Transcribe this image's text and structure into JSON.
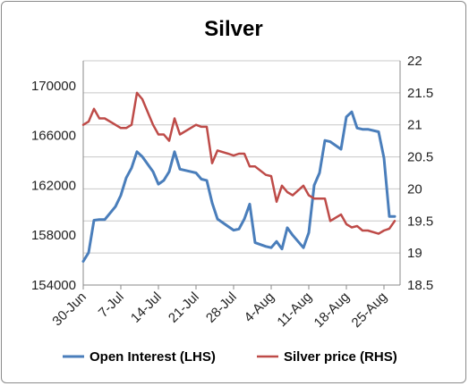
{
  "chart_data": {
    "type": "line",
    "title": "Silver",
    "x_tick_labels": [
      "30-Jun",
      "7-Jul",
      "14-Jul",
      "21-Jul",
      "28-Jul",
      "4-Aug",
      "11-Aug",
      "18-Aug",
      "25-Aug"
    ],
    "y_left": {
      "ylim": [
        154000,
        172000
      ],
      "ticks": [
        154000,
        158000,
        162000,
        166000,
        170000
      ]
    },
    "y_right": {
      "ylim": [
        18.5,
        22
      ],
      "ticks": [
        18.5,
        19,
        19.5,
        20,
        20.5,
        21,
        21.5,
        22
      ]
    },
    "grid": true,
    "legend": "bottom",
    "series": [
      {
        "name": "Open Interest (LHS)",
        "axis": "left",
        "color": "#4a7ebb",
        "x": [
          "30-Jun",
          "1-Jul",
          "2-Jul",
          "3-Jul",
          "4-Jul",
          "6-Jul",
          "7-Jul",
          "8-Jul",
          "9-Jul",
          "10-Jul",
          "11-Jul",
          "13-Jul",
          "14-Jul",
          "15-Jul",
          "16-Jul",
          "17-Jul",
          "18-Jul",
          "20-Jul",
          "21-Jul",
          "22-Jul",
          "23-Jul",
          "24-Jul",
          "25-Jul",
          "27-Jul",
          "28-Jul",
          "29-Jul",
          "30-Jul",
          "31-Jul",
          "1-Aug",
          "3-Aug",
          "4-Aug",
          "5-Aug",
          "6-Aug",
          "7-Aug",
          "8-Aug",
          "10-Aug",
          "11-Aug",
          "12-Aug",
          "13-Aug",
          "14-Aug",
          "15-Aug",
          "17-Aug",
          "18-Aug",
          "19-Aug",
          "20-Aug",
          "21-Aug",
          "22-Aug",
          "24-Aug",
          "25-Aug",
          "26-Aug",
          "27-Aug"
        ],
        "values": [
          155900,
          156600,
          159200,
          159250,
          159250,
          160300,
          161200,
          162600,
          163400,
          164700,
          164300,
          163100,
          162100,
          162400,
          163100,
          164700,
          163300,
          163100,
          163000,
          162500,
          162400,
          160600,
          159300,
          158700,
          158400,
          158500,
          159300,
          160500,
          157400,
          157100,
          157000,
          157500,
          156900,
          158600,
          158000,
          157000,
          158200,
          162000,
          163000,
          165600,
          165500,
          164900,
          167500,
          167900,
          166600,
          166500,
          166500,
          166300,
          164200,
          159500,
          159500
        ]
      },
      {
        "name": "Silver price (RHS)",
        "axis": "right",
        "color": "#be4b48",
        "x": [
          "30-Jun",
          "1-Jul",
          "2-Jul",
          "3-Jul",
          "4-Jul",
          "6-Jul",
          "7-Jul",
          "8-Jul",
          "9-Jul",
          "10-Jul",
          "11-Jul",
          "13-Jul",
          "14-Jul",
          "15-Jul",
          "16-Jul",
          "17-Jul",
          "18-Jul",
          "20-Jul",
          "21-Jul",
          "22-Jul",
          "23-Jul",
          "24-Jul",
          "25-Jul",
          "27-Jul",
          "28-Jul",
          "29-Jul",
          "30-Jul",
          "31-Jul",
          "1-Aug",
          "3-Aug",
          "4-Aug",
          "5-Aug",
          "6-Aug",
          "7-Aug",
          "8-Aug",
          "10-Aug",
          "11-Aug",
          "12-Aug",
          "13-Aug",
          "14-Aug",
          "15-Aug",
          "17-Aug",
          "18-Aug",
          "19-Aug",
          "20-Aug",
          "21-Aug",
          "22-Aug",
          "24-Aug",
          "25-Aug",
          "26-Aug",
          "27-Aug"
        ],
        "values": [
          21.0,
          21.05,
          21.25,
          21.1,
          21.1,
          21.0,
          20.95,
          20.95,
          21.0,
          21.5,
          21.4,
          21.0,
          20.85,
          20.85,
          20.75,
          21.1,
          20.85,
          20.95,
          21.0,
          20.97,
          20.97,
          20.4,
          20.6,
          20.55,
          20.52,
          20.55,
          20.55,
          20.35,
          20.35,
          20.22,
          20.2,
          19.8,
          20.05,
          19.95,
          19.9,
          20.05,
          19.9,
          19.85,
          19.85,
          19.85,
          19.5,
          19.6,
          19.45,
          19.4,
          19.42,
          19.35,
          19.35,
          19.3,
          19.35,
          19.38,
          19.5
        ]
      }
    ]
  }
}
